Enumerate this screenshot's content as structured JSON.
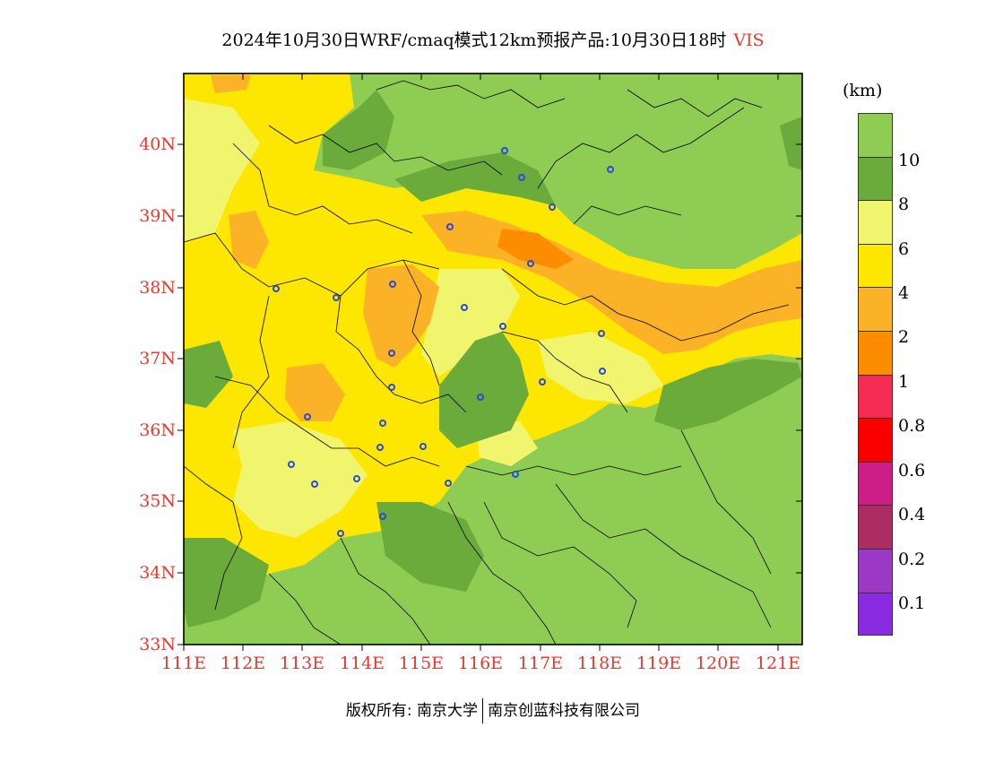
{
  "title": {
    "main": "2024年10月30日WRF/cmaq模式12km预报产品:10月30日18时",
    "variable": "VIS"
  },
  "map": {
    "lat_labels": [
      "40N",
      "39N",
      "38N",
      "37N",
      "36N",
      "35N",
      "34N",
      "33N"
    ],
    "lon_labels": [
      "111E",
      "112E",
      "113E",
      "114E",
      "115E",
      "116E",
      "117E",
      "118E",
      "119E",
      "120E",
      "121E"
    ],
    "lat_range": [
      33,
      40.9
    ],
    "lon_range": [
      111,
      121.4
    ]
  },
  "legend": {
    "unit": "(km)",
    "labels": [
      "10",
      "8",
      "6",
      "4",
      "2",
      "1",
      "0.8",
      "0.6",
      "0.4",
      "0.2",
      "0.1"
    ],
    "colors": [
      "#8fcc53",
      "#6aab3b",
      "#f1f46d",
      "#fde600",
      "#fbb226",
      "#fc8c00",
      "#f52b54",
      "#fb0000",
      "#cc1e86",
      "#ab2d64",
      "#9b38c6",
      "#8a2be2"
    ]
  },
  "footer": {
    "left": "版权所有: 南京大学",
    "right": "南京创蓝科技有限公司"
  }
}
